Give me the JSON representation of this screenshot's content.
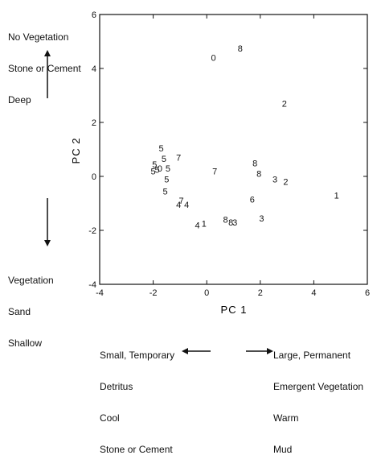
{
  "chart_data": {
    "type": "scatter",
    "title": "",
    "xlabel": "PC 1",
    "ylabel": "PC 2",
    "xlim": [
      -4,
      6
    ],
    "ylim": [
      -4,
      6
    ],
    "xticks": [
      "-4",
      "-2",
      "0",
      "2",
      "4",
      "6"
    ],
    "yticks": [
      "-4",
      "-2",
      "0",
      "2",
      "4",
      "6"
    ],
    "grid": false,
    "points": [
      {
        "x": 0.25,
        "y": 4.4,
        "label": "0"
      },
      {
        "x": 1.25,
        "y": 4.75,
        "label": "8"
      },
      {
        "x": 2.9,
        "y": 2.7,
        "label": "2"
      },
      {
        "x": -1.7,
        "y": 1.05,
        "label": "5"
      },
      {
        "x": -1.6,
        "y": 0.65,
        "label": "5"
      },
      {
        "x": -1.05,
        "y": 0.7,
        "label": "7"
      },
      {
        "x": -1.95,
        "y": 0.45,
        "label": "5"
      },
      {
        "x": -1.85,
        "y": 0.25,
        "label": "5"
      },
      {
        "x": -2.0,
        "y": 0.2,
        "label": "5"
      },
      {
        "x": -1.75,
        "y": 0.3,
        "label": "0"
      },
      {
        "x": -1.45,
        "y": 0.3,
        "label": "5"
      },
      {
        "x": -1.5,
        "y": -0.1,
        "label": "5"
      },
      {
        "x": -1.55,
        "y": -0.55,
        "label": "5"
      },
      {
        "x": 0.3,
        "y": 0.2,
        "label": "7"
      },
      {
        "x": 1.8,
        "y": 0.5,
        "label": "8"
      },
      {
        "x": 1.95,
        "y": 0.1,
        "label": "8"
      },
      {
        "x": 2.55,
        "y": -0.1,
        "label": "3"
      },
      {
        "x": 2.95,
        "y": -0.2,
        "label": "2"
      },
      {
        "x": 4.85,
        "y": -0.7,
        "label": "1"
      },
      {
        "x": -0.95,
        "y": -0.9,
        "label": "7"
      },
      {
        "x": -1.05,
        "y": -1.05,
        "label": "4"
      },
      {
        "x": -0.75,
        "y": -1.05,
        "label": "4"
      },
      {
        "x": 1.7,
        "y": -0.85,
        "label": "6"
      },
      {
        "x": 2.05,
        "y": -1.55,
        "label": "3"
      },
      {
        "x": 0.7,
        "y": -1.6,
        "label": "8"
      },
      {
        "x": 0.9,
        "y": -1.7,
        "label": "8"
      },
      {
        "x": 1.05,
        "y": -1.7,
        "label": "3"
      },
      {
        "x": -0.35,
        "y": -1.8,
        "label": "4"
      },
      {
        "x": -0.1,
        "y": -1.75,
        "label": "1"
      }
    ]
  },
  "annotations": {
    "top_left": [
      "No Vegetation",
      "Stone or Cement",
      "Deep"
    ],
    "bottom_left": [
      "Vegetation",
      "Sand",
      "Shallow"
    ],
    "bottom_center": [
      "Small, Temporary",
      "Detritus",
      "Cool",
      "Stone or Cement"
    ],
    "bottom_right": [
      "Large, Permanent",
      "Emergent Vegetation",
      "Warm",
      "Mud"
    ]
  }
}
